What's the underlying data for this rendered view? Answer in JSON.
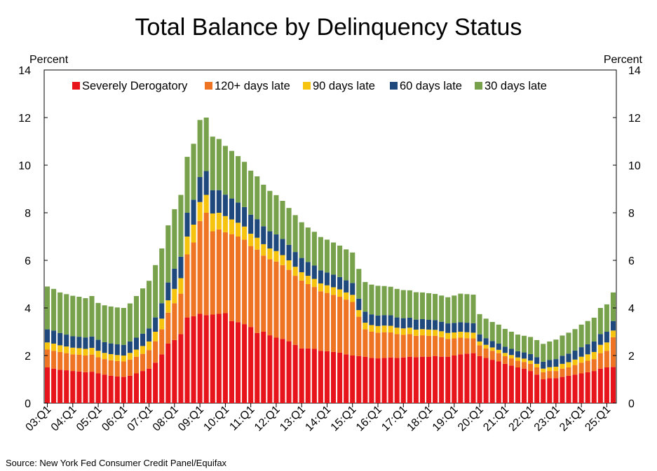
{
  "title": "Total Balance by Delinquency Status",
  "source": "Source: New York Fed Consumer Credit Panel/Equifax",
  "colors": {
    "severely_derogatory": "#e8141b",
    "days_120_plus": "#ee7424",
    "days_90": "#f6c40f",
    "days_60": "#1f497d",
    "days_30": "#77a14a"
  },
  "chart_data": {
    "type": "bar",
    "stacked": true,
    "ylabel_left": "Percent",
    "ylabel_right": "Percent",
    "ylim": [
      0,
      14
    ],
    "yticks": [
      0,
      2,
      4,
      6,
      8,
      10,
      12,
      14
    ],
    "legend_position": "top-left",
    "x_tick_labels": [
      "03:Q1",
      "04:Q1",
      "05:Q1",
      "06:Q1",
      "07:Q1",
      "08:Q1",
      "09:Q1",
      "10:Q1",
      "11:Q1",
      "12:Q1",
      "13:Q1",
      "14:Q1",
      "15:Q1",
      "16:Q1",
      "17:Q1",
      "18:Q1",
      "19:Q1",
      "20:Q1",
      "21:Q1",
      "22:Q1",
      "23:Q1",
      "24:Q1",
      "25:Q1"
    ],
    "x_tick_every": 4,
    "series": [
      {
        "name": "Severely Derogatory",
        "values": [
          1.5,
          1.45,
          1.4,
          1.38,
          1.35,
          1.33,
          1.3,
          1.32,
          1.25,
          1.2,
          1.15,
          1.12,
          1.1,
          1.15,
          1.25,
          1.35,
          1.45,
          1.7,
          2.05,
          2.5,
          2.65,
          2.9,
          3.6,
          3.65,
          3.75,
          3.7,
          3.72,
          3.75,
          3.78,
          3.45,
          3.4,
          3.32,
          3.2,
          2.95,
          3.0,
          2.85,
          2.75,
          2.7,
          2.6,
          2.45,
          2.3,
          2.3,
          2.28,
          2.2,
          2.18,
          2.15,
          2.12,
          2.05,
          2.0,
          1.98,
          1.95,
          1.9,
          1.88,
          1.9,
          1.92,
          1.9,
          1.92,
          1.95,
          1.93,
          1.95,
          1.95,
          1.98,
          1.95,
          1.95,
          2.0,
          2.05,
          2.08,
          2.1,
          1.98,
          1.9,
          1.82,
          1.75,
          1.65,
          1.58,
          1.5,
          1.45,
          1.35,
          1.2,
          1.0,
          1.05,
          1.05,
          1.1,
          1.15,
          1.2,
          1.25,
          1.3,
          1.35,
          1.45,
          1.5,
          1.52
        ]
      },
      {
        "name": "120+ days late",
        "values": [
          0.75,
          0.75,
          0.75,
          0.72,
          0.7,
          0.7,
          0.7,
          0.72,
          0.68,
          0.65,
          0.65,
          0.65,
          0.65,
          0.68,
          0.7,
          0.72,
          0.78,
          0.9,
          1.05,
          1.3,
          1.55,
          1.7,
          2.65,
          3.1,
          3.9,
          4.3,
          3.5,
          3.55,
          3.4,
          3.65,
          3.6,
          3.55,
          3.4,
          3.5,
          3.2,
          3.2,
          3.2,
          3.1,
          3.0,
          2.9,
          2.85,
          2.7,
          2.6,
          2.5,
          2.45,
          2.4,
          2.35,
          2.3,
          2.25,
          1.65,
          1.15,
          1.1,
          1.08,
          1.08,
          1.05,
          1.0,
          0.95,
          0.95,
          0.9,
          0.9,
          0.88,
          0.85,
          0.82,
          0.75,
          0.72,
          0.7,
          0.65,
          0.62,
          0.45,
          0.4,
          0.38,
          0.35,
          0.32,
          0.3,
          0.28,
          0.28,
          0.3,
          0.3,
          0.3,
          0.3,
          0.3,
          0.35,
          0.35,
          0.4,
          0.45,
          0.48,
          0.5,
          0.65,
          0.7,
          1.25
        ]
      },
      {
        "name": "90 days late",
        "values": [
          0.3,
          0.3,
          0.28,
          0.28,
          0.28,
          0.28,
          0.28,
          0.28,
          0.27,
          0.26,
          0.26,
          0.25,
          0.25,
          0.28,
          0.3,
          0.33,
          0.36,
          0.4,
          0.45,
          0.52,
          0.6,
          0.65,
          0.75,
          0.75,
          0.8,
          0.75,
          0.75,
          0.7,
          0.68,
          0.62,
          0.58,
          0.55,
          0.52,
          0.5,
          0.48,
          0.45,
          0.44,
          0.42,
          0.4,
          0.38,
          0.35,
          0.35,
          0.34,
          0.33,
          0.32,
          0.32,
          0.31,
          0.3,
          0.3,
          0.28,
          0.28,
          0.28,
          0.28,
          0.28,
          0.28,
          0.27,
          0.27,
          0.27,
          0.26,
          0.26,
          0.26,
          0.25,
          0.25,
          0.25,
          0.25,
          0.25,
          0.25,
          0.24,
          0.16,
          0.15,
          0.14,
          0.14,
          0.14,
          0.14,
          0.14,
          0.14,
          0.14,
          0.15,
          0.15,
          0.16,
          0.18,
          0.2,
          0.22,
          0.23,
          0.25,
          0.27,
          0.3,
          0.35,
          0.35,
          0.28
        ]
      },
      {
        "name": "60 days late",
        "values": [
          0.55,
          0.55,
          0.52,
          0.5,
          0.48,
          0.48,
          0.48,
          0.48,
          0.46,
          0.45,
          0.45,
          0.45,
          0.45,
          0.48,
          0.5,
          0.52,
          0.55,
          0.6,
          0.65,
          0.75,
          0.85,
          0.9,
          1.0,
          1.05,
          1.05,
          1.0,
          0.98,
          0.95,
          0.9,
          0.88,
          0.85,
          0.82,
          0.8,
          0.78,
          0.75,
          0.72,
          0.7,
          0.68,
          0.65,
          0.62,
          0.6,
          0.58,
          0.56,
          0.55,
          0.54,
          0.53,
          0.52,
          0.51,
          0.5,
          0.48,
          0.46,
          0.45,
          0.44,
          0.44,
          0.44,
          0.43,
          0.43,
          0.42,
          0.42,
          0.42,
          0.41,
          0.41,
          0.4,
          0.4,
          0.4,
          0.4,
          0.4,
          0.4,
          0.3,
          0.28,
          0.27,
          0.26,
          0.26,
          0.26,
          0.26,
          0.26,
          0.27,
          0.28,
          0.29,
          0.3,
          0.32,
          0.34,
          0.36,
          0.38,
          0.4,
          0.42,
          0.44,
          0.45,
          0.45,
          0.4
        ]
      },
      {
        "name": "30 days late",
        "values": [
          1.8,
          1.75,
          1.7,
          1.7,
          1.7,
          1.68,
          1.65,
          1.7,
          1.55,
          1.55,
          1.55,
          1.55,
          1.55,
          1.6,
          1.75,
          1.9,
          2.0,
          2.2,
          2.3,
          2.4,
          2.5,
          2.6,
          2.35,
          2.35,
          2.4,
          2.25,
          2.25,
          2.15,
          2.05,
          2.0,
          1.95,
          1.9,
          1.85,
          1.8,
          1.75,
          1.7,
          1.65,
          1.6,
          1.55,
          1.55,
          1.5,
          1.45,
          1.42,
          1.4,
          1.38,
          1.35,
          1.32,
          1.3,
          1.28,
          1.25,
          1.25,
          1.25,
          1.25,
          1.22,
          1.2,
          1.2,
          1.18,
          1.15,
          1.15,
          1.12,
          1.12,
          1.1,
          1.1,
          1.1,
          1.15,
          1.2,
          1.2,
          1.2,
          0.85,
          0.82,
          0.8,
          0.8,
          0.75,
          0.72,
          0.7,
          0.7,
          0.72,
          0.72,
          0.75,
          0.78,
          0.82,
          0.85,
          0.88,
          0.9,
          0.95,
          0.98,
          1.0,
          1.1,
          1.15,
          1.2
        ]
      }
    ]
  }
}
